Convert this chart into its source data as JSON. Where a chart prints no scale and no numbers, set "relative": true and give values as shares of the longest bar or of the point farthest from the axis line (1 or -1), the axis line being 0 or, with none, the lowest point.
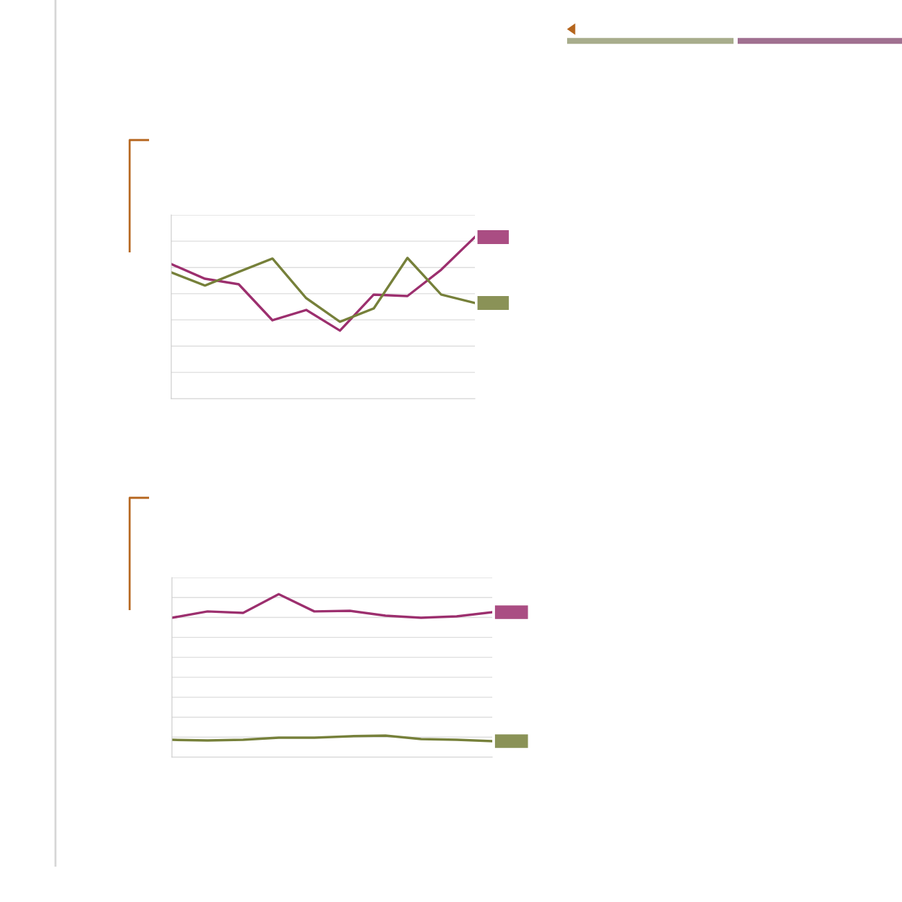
{
  "chart_data": [
    {
      "type": "line",
      "relative": true,
      "grid": "y",
      "categories": [
        null,
        null,
        null,
        null,
        null,
        null,
        null,
        null,
        null,
        null
      ],
      "series": [
        {
          "color": "#9c2f6e",
          "values": [
            0.833,
            0.742,
            0.708,
            0.485,
            0.549,
            0.421,
            0.644,
            0.635,
            0.798,
            1
          ]
        },
        {
          "color": "#76803a",
          "values": [
            0.781,
            0.7,
            0.785,
            0.867,
            0.622,
            0.476,
            0.558,
            0.871,
            0.644,
            0.592
          ]
        }
      ]
    },
    {
      "type": "line",
      "relative": true,
      "grid": "y",
      "categories": [
        null,
        null,
        null,
        null,
        null,
        null,
        null,
        null,
        null,
        null
      ],
      "series": [
        {
          "color": "#9c2f6e",
          "values": [
            0.855,
            0.894,
            0.885,
            1,
            0.894,
            0.898,
            0.868,
            0.855,
            0.864,
            0.889
          ]
        },
        {
          "color": "#76803a",
          "values": [
            0.106,
            0.102,
            0.106,
            0.119,
            0.119,
            0.128,
            0.132,
            0.111,
            0.106,
            0.098
          ]
        }
      ]
    }
  ]
}
